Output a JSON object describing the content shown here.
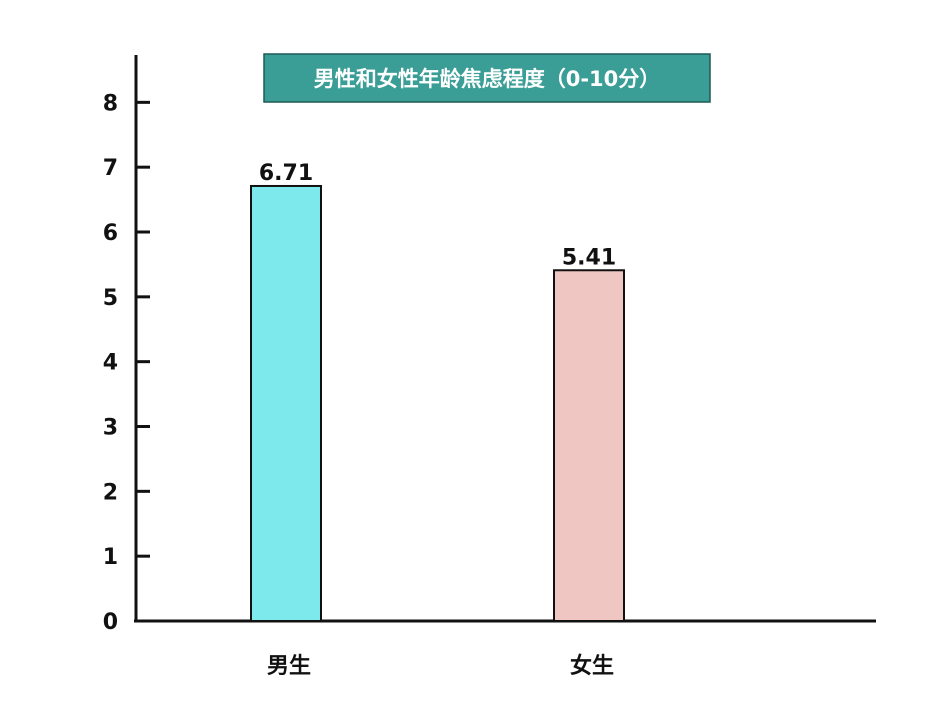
{
  "chart_data": {
    "type": "bar",
    "title": "男性和女性年龄焦虑程度（0-10分）",
    "categories": [
      "男生",
      "女生"
    ],
    "values": [
      6.71,
      5.41
    ],
    "value_labels": [
      "6.71",
      "5.41"
    ],
    "yticks": [
      0,
      1,
      2,
      3,
      4,
      5,
      6,
      7,
      8
    ],
    "ylim": [
      0,
      8.9
    ],
    "colors": [
      "#7de9ec",
      "#f0c6c2"
    ],
    "title_bg": "#3a9e96",
    "grid": false,
    "legend": "none"
  }
}
